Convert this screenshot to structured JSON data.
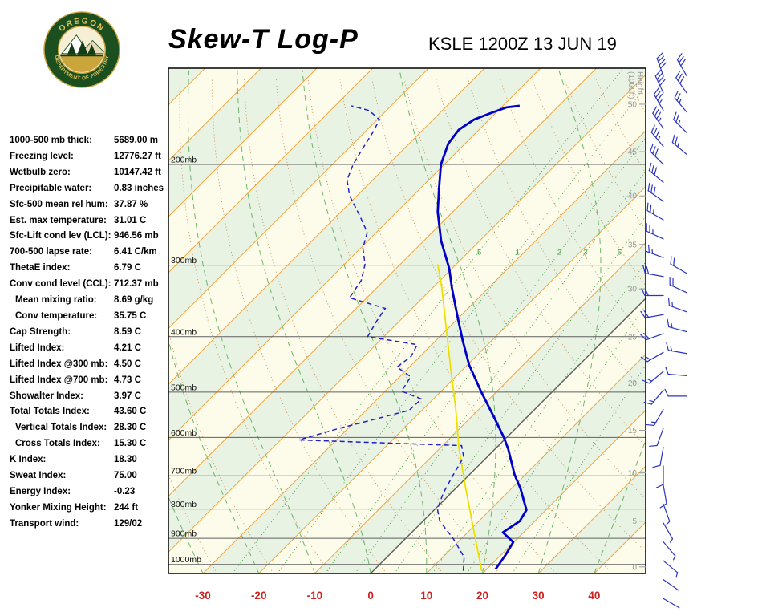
{
  "header": {
    "title": "Skew-T Log-P",
    "station_line": "KSLE 1200Z 13 JUN 19",
    "logo": {
      "arc_top": "OREGON",
      "arc_bottom": "DEPARTMENT OF FORESTRY"
    }
  },
  "indices_panel": {
    "rows": [
      {
        "label": "1000-500 mb thick:",
        "value": "5689.00 m",
        "indent": false
      },
      {
        "label": "Freezing level:",
        "value": "12776.27 ft",
        "indent": false
      },
      {
        "label": "Wetbulb zero:",
        "value": "10147.42 ft",
        "indent": false
      },
      {
        "label": "Precipitable water:",
        "value": "0.83 inches",
        "indent": false
      },
      {
        "label": "Sfc-500 mean rel hum:",
        "value": "37.87 %",
        "indent": false
      },
      {
        "label": "Est. max temperature:",
        "value": "31.01 C",
        "indent": false
      },
      {
        "label": "Sfc-Lift cond lev (LCL):",
        "value": "946.56 mb",
        "indent": false
      },
      {
        "label": "700-500 lapse rate:",
        "value": "6.41 C/km",
        "indent": false
      },
      {
        "label": "ThetaE index:",
        "value": "6.79 C",
        "indent": false
      },
      {
        "label": "Conv cond level (CCL):",
        "value": "712.37 mb",
        "indent": false
      },
      {
        "label": "Mean mixing ratio:",
        "value": "8.69 g/kg",
        "indent": true
      },
      {
        "label": "Conv temperature:",
        "value": "35.75 C",
        "indent": true
      },
      {
        "label": "Cap Strength:",
        "value": "8.59 C",
        "indent": false
      },
      {
        "label": "Lifted Index:",
        "value": "4.21 C",
        "indent": false
      },
      {
        "label": "Lifted Index @300 mb:",
        "value": "4.50 C",
        "indent": false
      },
      {
        "label": "Lifted Index @700 mb:",
        "value": "4.73 C",
        "indent": false
      },
      {
        "label": "Showalter Index:",
        "value": "3.97 C",
        "indent": false
      },
      {
        "label": "Total Totals Index:",
        "value": "43.60 C",
        "indent": false
      },
      {
        "label": "Vertical Totals Index:",
        "value": "28.30 C",
        "indent": true
      },
      {
        "label": "Cross Totals Index:",
        "value": "15.30 C",
        "indent": true
      },
      {
        "label": "K Index:",
        "value": "18.30",
        "indent": false
      },
      {
        "label": "Sweat Index:",
        "value": "75.00",
        "indent": false
      },
      {
        "label": "Energy Index:",
        "value": "-0.23",
        "indent": false
      },
      {
        "label": "Yonker Mixing Height:",
        "value": "244 ft",
        "indent": false
      },
      {
        "label": "Transport wind:",
        "value": "129/02",
        "indent": false
      }
    ]
  },
  "chart_data": {
    "type": "line",
    "subtype": "skew_t_log_p",
    "station": "KSLE",
    "valid_time": "1200Z 13 JUN 19",
    "pressure_range_mb": [
      1037,
      135.8
    ],
    "temp_axis_c": [
      -30,
      -20,
      -10,
      0,
      10,
      20,
      30,
      40
    ],
    "pressure_lines": [
      {
        "p": 200,
        "label": "200mb"
      },
      {
        "p": 300,
        "label": "300mb"
      },
      {
        "p": 400,
        "label": "400mb"
      },
      {
        "p": 500,
        "label": "500mb"
      },
      {
        "p": 600,
        "label": "600mb"
      },
      {
        "p": 700,
        "label": "700mb"
      },
      {
        "p": 800,
        "label": "800mb"
      },
      {
        "p": 900,
        "label": "900mb"
      },
      {
        "p": 1000,
        "label": "1000mb"
      }
    ],
    "height_axis": {
      "title_lines": [
        "Height",
        "(1000ft)"
      ],
      "ticks": [
        {
          "label": "50",
          "p": 157
        },
        {
          "label": "45",
          "p": 190
        },
        {
          "label": "40",
          "p": 227
        },
        {
          "label": "35",
          "p": 276
        },
        {
          "label": "30",
          "p": 330
        },
        {
          "label": "25",
          "p": 400
        },
        {
          "label": "20",
          "p": 482
        },
        {
          "label": "15",
          "p": 583
        },
        {
          "label": "10",
          "p": 692
        },
        {
          "label": "5",
          "p": 840
        },
        {
          "label": "0",
          "p": 1010
        }
      ]
    },
    "isotherm_step_c": 10,
    "mixing_ratio_lines_gkg": [
      0.5,
      1,
      2,
      3,
      5,
      8,
      12,
      20
    ],
    "mixing_ratio_labels": [
      {
        "w": 0.5,
        "text": ".5"
      },
      {
        "w": 1,
        "text": "1"
      },
      {
        "w": 2,
        "text": "2"
      },
      {
        "w": 3,
        "text": "3"
      },
      {
        "w": 5,
        "text": "5"
      }
    ],
    "temperature_profile": [
      [
        1020,
        21.6
      ],
      [
        962,
        20.8
      ],
      [
        914,
        19.9
      ],
      [
        879,
        16.3
      ],
      [
        840,
        17.3
      ],
      [
        803,
        16.5
      ],
      [
        738,
        11.7
      ],
      [
        696,
        8.0
      ],
      [
        628,
        2.3
      ],
      [
        599,
        -0.6
      ],
      [
        552,
        -6.0
      ],
      [
        501,
        -12.5
      ],
      [
        448,
        -19.7
      ],
      [
        407,
        -25.1
      ],
      [
        369,
        -30.4
      ],
      [
        329,
        -36.5
      ],
      [
        304,
        -40.5
      ],
      [
        272,
        -46.9
      ],
      [
        242,
        -52.7
      ],
      [
        220,
        -56.7
      ],
      [
        200,
        -60.6
      ],
      [
        184,
        -63.0
      ],
      [
        174,
        -63.6
      ],
      [
        167,
        -62.7
      ],
      [
        163,
        -61.0
      ],
      [
        159,
        -59.1
      ],
      [
        158,
        -57.0
      ]
    ],
    "dewpoint_profile": [
      [
        1026,
        16.1
      ],
      [
        971,
        13.8
      ],
      [
        902,
        8.6
      ],
      [
        840,
        3.0
      ],
      [
        800,
        0.4
      ],
      [
        750,
        -1.4
      ],
      [
        696,
        -2.9
      ],
      [
        649,
        -4.2
      ],
      [
        620,
        -6.6
      ],
      [
        606,
        -36.7
      ],
      [
        580,
        -31.9
      ],
      [
        538,
        -22.3
      ],
      [
        514,
        -22.1
      ],
      [
        498,
        -27.1
      ],
      [
        470,
        -28.0
      ],
      [
        452,
        -32.2
      ],
      [
        433,
        -31.6
      ],
      [
        413,
        -32.6
      ],
      [
        400,
        -42.9
      ],
      [
        375,
        -44.1
      ],
      [
        357,
        -44.8
      ],
      [
        342,
        -53.1
      ],
      [
        319,
        -54.1
      ],
      [
        299,
        -56.3
      ],
      [
        280,
        -59.6
      ],
      [
        263,
        -61.6
      ],
      [
        246,
        -65.9
      ],
      [
        227,
        -71.3
      ],
      [
        213,
        -74.6
      ],
      [
        200,
        -76.3
      ],
      [
        187,
        -77.5
      ],
      [
        176,
        -78.5
      ],
      [
        167,
        -79.6
      ],
      [
        161,
        -83.1
      ],
      [
        158,
        -87.1
      ]
    ],
    "parcel_profile": [
      [
        1026,
        19.4
      ],
      [
        868,
        10.5
      ],
      [
        738,
        1.9
      ],
      [
        628,
        -6.5
      ],
      [
        535,
        -14.2
      ],
      [
        455,
        -22.3
      ],
      [
        387,
        -30.3
      ],
      [
        329,
        -38.3
      ],
      [
        299,
        -43.3
      ]
    ],
    "wind_barbs": {
      "column1": [
        [
          1147,
          120,
          2
        ],
        [
          1063,
          125,
          2
        ],
        [
          985,
          130,
          5
        ],
        [
          913,
          140,
          5
        ],
        [
          846,
          150,
          5
        ],
        [
          784,
          160,
          5
        ],
        [
          727,
          170,
          10
        ],
        [
          673,
          180,
          10
        ],
        [
          624,
          190,
          10
        ],
        [
          578,
          200,
          10
        ],
        [
          536,
          210,
          15
        ],
        [
          496,
          220,
          15
        ],
        [
          460,
          230,
          15
        ],
        [
          426,
          240,
          15
        ],
        [
          395,
          250,
          20
        ],
        [
          366,
          260,
          20
        ],
        [
          339,
          270,
          20
        ],
        [
          314,
          280,
          20
        ],
        [
          291,
          290,
          25
        ],
        [
          270,
          295,
          25
        ],
        [
          250,
          300,
          25
        ],
        [
          232,
          305,
          30
        ],
        [
          215,
          310,
          30
        ],
        [
          200,
          315,
          30
        ],
        [
          186,
          320,
          35
        ],
        [
          173,
          325,
          35
        ],
        [
          161,
          330,
          35
        ],
        [
          150,
          335,
          40
        ],
        [
          140,
          340,
          40
        ]
      ],
      "column2": [
        [
          140,
          330,
          30
        ],
        [
          150,
          325,
          30
        ],
        [
          162,
          320,
          25
        ],
        [
          176,
          315,
          25
        ],
        [
          192,
          310,
          25
        ],
        [
          310,
          300,
          20
        ],
        [
          335,
          295,
          20
        ],
        [
          362,
          290,
          15
        ],
        [
          392,
          285,
          15
        ],
        [
          428,
          280,
          15
        ],
        [
          468,
          275,
          10
        ],
        [
          508,
          270,
          10
        ]
      ]
    },
    "colors": {
      "band_cream": "#fdfcea",
      "band_green": "#e8f3e4",
      "isotherm": "#f2a33c",
      "zero_isotherm": "#555555",
      "dry_adiabat": "#c08040",
      "moist_adiabat": "#55aa55",
      "mixing_ratio": "#3d9b3d",
      "pressure_line": "#606060",
      "pressure_label": "#111111",
      "frame": "#000000",
      "temperature": "#0000c8",
      "dewpoint": "#2020cc",
      "parcel": "#ede000",
      "axis_red": "#cc2222",
      "height_axis": "#999999",
      "barb": "#2a35c0"
    }
  }
}
